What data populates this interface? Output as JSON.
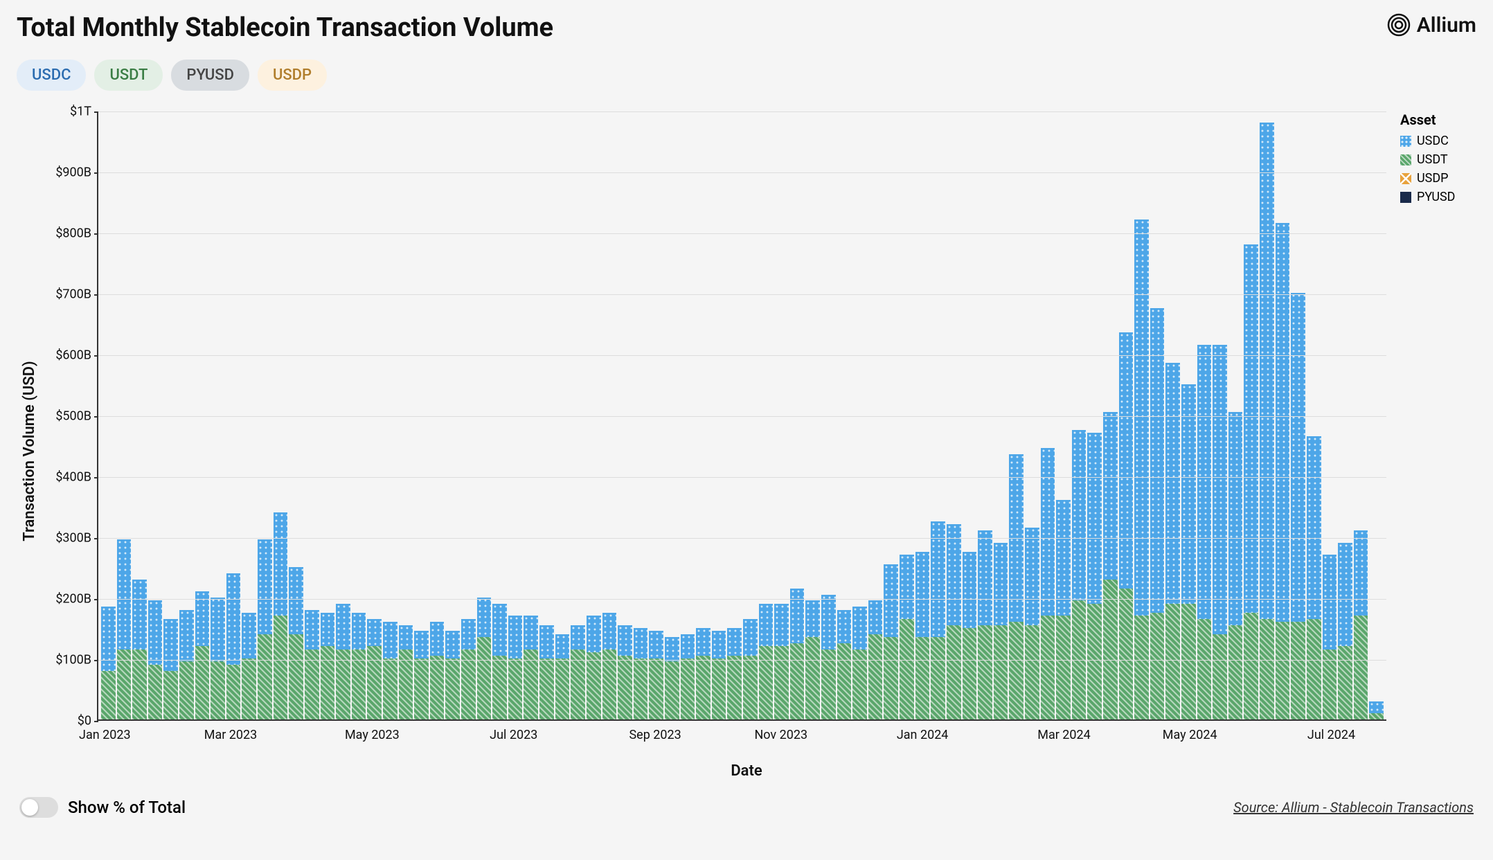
{
  "title": "Total Monthly Stablecoin Transaction Volume",
  "brand": "Allium",
  "pills": [
    {
      "label": "USDC",
      "bg": "#e3edf8",
      "fg": "#2b6cb0"
    },
    {
      "label": "USDT",
      "bg": "#e3efe5",
      "fg": "#3a7d44"
    },
    {
      "label": "PYUSD",
      "bg": "#d8dce0",
      "fg": "#444"
    },
    {
      "label": "USDP",
      "bg": "#fdf1df",
      "fg": "#b07d2b"
    }
  ],
  "chart": {
    "type": "stacked-bar",
    "background_color": "#f5f5f5",
    "grid_color": "#dddddd",
    "axis_color": "#333333",
    "ylabel": "Transaction Volume (USD)",
    "xlabel": "Date",
    "ylim": [
      0,
      1000
    ],
    "y_ticks": [
      {
        "v": 0,
        "label": "$0"
      },
      {
        "v": 100,
        "label": "$100B"
      },
      {
        "v": 200,
        "label": "$200B"
      },
      {
        "v": 300,
        "label": "$300B"
      },
      {
        "v": 400,
        "label": "$400B"
      },
      {
        "v": 500,
        "label": "$500B"
      },
      {
        "v": 600,
        "label": "$600B"
      },
      {
        "v": 700,
        "label": "$700B"
      },
      {
        "v": 800,
        "label": "$800B"
      },
      {
        "v": 900,
        "label": "$900B"
      },
      {
        "v": 1000,
        "label": "$1T"
      }
    ],
    "x_ticks": [
      {
        "idx": 0,
        "label": "Jan 2023"
      },
      {
        "idx": 8,
        "label": "Mar 2023"
      },
      {
        "idx": 17,
        "label": "May 2023"
      },
      {
        "idx": 26,
        "label": "Jul 2023"
      },
      {
        "idx": 35,
        "label": "Sep 2023"
      },
      {
        "idx": 43,
        "label": "Nov 2023"
      },
      {
        "idx": 52,
        "label": "Jan 2024"
      },
      {
        "idx": 61,
        "label": "Mar 2024"
      },
      {
        "idx": 69,
        "label": "May 2024"
      },
      {
        "idx": 78,
        "label": "Jul 2024"
      }
    ],
    "series_colors": {
      "USDC": "#4da6e8",
      "USDT": "#5aa66b",
      "USDP": "#e8a23c",
      "PYUSD": "#1a2a4a"
    },
    "series_order": [
      "USDT",
      "USDC",
      "USDP",
      "PYUSD"
    ],
    "legend": {
      "title": "Asset",
      "items": [
        {
          "label": "USDC",
          "color": "#4da6e8",
          "pattern": "dot"
        },
        {
          "label": "USDT",
          "color": "#5aa66b",
          "pattern": "hatch"
        },
        {
          "label": "USDP",
          "color": "#e8a23c",
          "pattern": "cross"
        },
        {
          "label": "PYUSD",
          "color": "#1a2a4a",
          "pattern": "solid"
        }
      ]
    },
    "data": [
      {
        "USDT": 80,
        "USDC": 105,
        "USDP": 0,
        "PYUSD": 0
      },
      {
        "USDT": 115,
        "USDC": 180,
        "USDP": 0,
        "PYUSD": 0
      },
      {
        "USDT": 115,
        "USDC": 115,
        "USDP": 0,
        "PYUSD": 0
      },
      {
        "USDT": 90,
        "USDC": 105,
        "USDP": 0,
        "PYUSD": 0
      },
      {
        "USDT": 80,
        "USDC": 85,
        "USDP": 0,
        "PYUSD": 0
      },
      {
        "USDT": 95,
        "USDC": 85,
        "USDP": 0,
        "PYUSD": 0
      },
      {
        "USDT": 120,
        "USDC": 90,
        "USDP": 0,
        "PYUSD": 0
      },
      {
        "USDT": 95,
        "USDC": 105,
        "USDP": 0,
        "PYUSD": 0
      },
      {
        "USDT": 90,
        "USDC": 150,
        "USDP": 0,
        "PYUSD": 0
      },
      {
        "USDT": 100,
        "USDC": 75,
        "USDP": 0,
        "PYUSD": 0
      },
      {
        "USDT": 140,
        "USDC": 155,
        "USDP": 0,
        "PYUSD": 0
      },
      {
        "USDT": 170,
        "USDC": 170,
        "USDP": 0,
        "PYUSD": 0
      },
      {
        "USDT": 140,
        "USDC": 110,
        "USDP": 0,
        "PYUSD": 0
      },
      {
        "USDT": 115,
        "USDC": 65,
        "USDP": 0,
        "PYUSD": 0
      },
      {
        "USDT": 120,
        "USDC": 55,
        "USDP": 0,
        "PYUSD": 0
      },
      {
        "USDT": 115,
        "USDC": 75,
        "USDP": 0,
        "PYUSD": 0
      },
      {
        "USDT": 115,
        "USDC": 60,
        "USDP": 0,
        "PYUSD": 0
      },
      {
        "USDT": 120,
        "USDC": 45,
        "USDP": 0,
        "PYUSD": 0
      },
      {
        "USDT": 100,
        "USDC": 60,
        "USDP": 0,
        "PYUSD": 0
      },
      {
        "USDT": 115,
        "USDC": 40,
        "USDP": 0,
        "PYUSD": 0
      },
      {
        "USDT": 100,
        "USDC": 45,
        "USDP": 0,
        "PYUSD": 0
      },
      {
        "USDT": 105,
        "USDC": 55,
        "USDP": 0,
        "PYUSD": 0
      },
      {
        "USDT": 100,
        "USDC": 45,
        "USDP": 0,
        "PYUSD": 0
      },
      {
        "USDT": 115,
        "USDC": 50,
        "USDP": 0,
        "PYUSD": 0
      },
      {
        "USDT": 135,
        "USDC": 65,
        "USDP": 0,
        "PYUSD": 0
      },
      {
        "USDT": 105,
        "USDC": 85,
        "USDP": 0,
        "PYUSD": 0
      },
      {
        "USDT": 100,
        "USDC": 70,
        "USDP": 0,
        "PYUSD": 0
      },
      {
        "USDT": 115,
        "USDC": 55,
        "USDP": 0,
        "PYUSD": 0
      },
      {
        "USDT": 100,
        "USDC": 55,
        "USDP": 0,
        "PYUSD": 0
      },
      {
        "USDT": 100,
        "USDC": 40,
        "USDP": 0,
        "PYUSD": 0
      },
      {
        "USDT": 115,
        "USDC": 40,
        "USDP": 0,
        "PYUSD": 0
      },
      {
        "USDT": 110,
        "USDC": 60,
        "USDP": 0,
        "PYUSD": 0
      },
      {
        "USDT": 115,
        "USDC": 60,
        "USDP": 0,
        "PYUSD": 0
      },
      {
        "USDT": 105,
        "USDC": 50,
        "USDP": 0,
        "PYUSD": 0
      },
      {
        "USDT": 100,
        "USDC": 50,
        "USDP": 0,
        "PYUSD": 0
      },
      {
        "USDT": 100,
        "USDC": 45,
        "USDP": 0,
        "PYUSD": 0
      },
      {
        "USDT": 95,
        "USDC": 40,
        "USDP": 0,
        "PYUSD": 0
      },
      {
        "USDT": 100,
        "USDC": 40,
        "USDP": 0,
        "PYUSD": 0
      },
      {
        "USDT": 105,
        "USDC": 45,
        "USDP": 0,
        "PYUSD": 0
      },
      {
        "USDT": 100,
        "USDC": 45,
        "USDP": 0,
        "PYUSD": 0
      },
      {
        "USDT": 105,
        "USDC": 45,
        "USDP": 0,
        "PYUSD": 0
      },
      {
        "USDT": 105,
        "USDC": 60,
        "USDP": 0,
        "PYUSD": 0
      },
      {
        "USDT": 120,
        "USDC": 70,
        "USDP": 0,
        "PYUSD": 0
      },
      {
        "USDT": 120,
        "USDC": 70,
        "USDP": 0,
        "PYUSD": 0
      },
      {
        "USDT": 125,
        "USDC": 90,
        "USDP": 0,
        "PYUSD": 0
      },
      {
        "USDT": 135,
        "USDC": 60,
        "USDP": 0,
        "PYUSD": 0
      },
      {
        "USDT": 115,
        "USDC": 90,
        "USDP": 0,
        "PYUSD": 0
      },
      {
        "USDT": 125,
        "USDC": 55,
        "USDP": 0,
        "PYUSD": 0
      },
      {
        "USDT": 115,
        "USDC": 70,
        "USDP": 0,
        "PYUSD": 0
      },
      {
        "USDT": 140,
        "USDC": 55,
        "USDP": 0,
        "PYUSD": 0
      },
      {
        "USDT": 135,
        "USDC": 120,
        "USDP": 0,
        "PYUSD": 0
      },
      {
        "USDT": 165,
        "USDC": 105,
        "USDP": 0,
        "PYUSD": 0
      },
      {
        "USDT": 135,
        "USDC": 140,
        "USDP": 0,
        "PYUSD": 0
      },
      {
        "USDT": 135,
        "USDC": 190,
        "USDP": 0,
        "PYUSD": 0
      },
      {
        "USDT": 155,
        "USDC": 165,
        "USDP": 0,
        "PYUSD": 0
      },
      {
        "USDT": 150,
        "USDC": 125,
        "USDP": 0,
        "PYUSD": 0
      },
      {
        "USDT": 155,
        "USDC": 155,
        "USDP": 0,
        "PYUSD": 0
      },
      {
        "USDT": 155,
        "USDC": 135,
        "USDP": 0,
        "PYUSD": 0
      },
      {
        "USDT": 160,
        "USDC": 275,
        "USDP": 0,
        "PYUSD": 0
      },
      {
        "USDT": 155,
        "USDC": 160,
        "USDP": 0,
        "PYUSD": 0
      },
      {
        "USDT": 170,
        "USDC": 275,
        "USDP": 0,
        "PYUSD": 0
      },
      {
        "USDT": 170,
        "USDC": 190,
        "USDP": 0,
        "PYUSD": 0
      },
      {
        "USDT": 195,
        "USDC": 280,
        "USDP": 0,
        "PYUSD": 0
      },
      {
        "USDT": 190,
        "USDC": 280,
        "USDP": 0,
        "PYUSD": 0
      },
      {
        "USDT": 230,
        "USDC": 275,
        "USDP": 0,
        "PYUSD": 0
      },
      {
        "USDT": 215,
        "USDC": 420,
        "USDP": 0,
        "PYUSD": 0
      },
      {
        "USDT": 170,
        "USDC": 650,
        "USDP": 0,
        "PYUSD": 0
      },
      {
        "USDT": 175,
        "USDC": 500,
        "USDP": 0,
        "PYUSD": 0
      },
      {
        "USDT": 190,
        "USDC": 395,
        "USDP": 0,
        "PYUSD": 0
      },
      {
        "USDT": 190,
        "USDC": 360,
        "USDP": 0,
        "PYUSD": 0
      },
      {
        "USDT": 165,
        "USDC": 450,
        "USDP": 0,
        "PYUSD": 0
      },
      {
        "USDT": 140,
        "USDC": 475,
        "USDP": 0,
        "PYUSD": 0
      },
      {
        "USDT": 155,
        "USDC": 350,
        "USDP": 0,
        "PYUSD": 0
      },
      {
        "USDT": 175,
        "USDC": 605,
        "USDP": 0,
        "PYUSD": 0
      },
      {
        "USDT": 165,
        "USDC": 815,
        "USDP": 0,
        "PYUSD": 0
      },
      {
        "USDT": 160,
        "USDC": 655,
        "USDP": 0,
        "PYUSD": 0
      },
      {
        "USDT": 160,
        "USDC": 540,
        "USDP": 0,
        "PYUSD": 0
      },
      {
        "USDT": 165,
        "USDC": 300,
        "USDP": 0,
        "PYUSD": 0
      },
      {
        "USDT": 115,
        "USDC": 155,
        "USDP": 0,
        "PYUSD": 0
      },
      {
        "USDT": 120,
        "USDC": 170,
        "USDP": 0,
        "PYUSD": 0
      },
      {
        "USDT": 170,
        "USDC": 140,
        "USDP": 0,
        "PYUSD": 0
      },
      {
        "USDT": 10,
        "USDC": 20,
        "USDP": 0,
        "PYUSD": 0
      }
    ]
  },
  "toggle_label": "Show % of Total",
  "source_text": "Source: Allium - Stablecoin Transactions"
}
